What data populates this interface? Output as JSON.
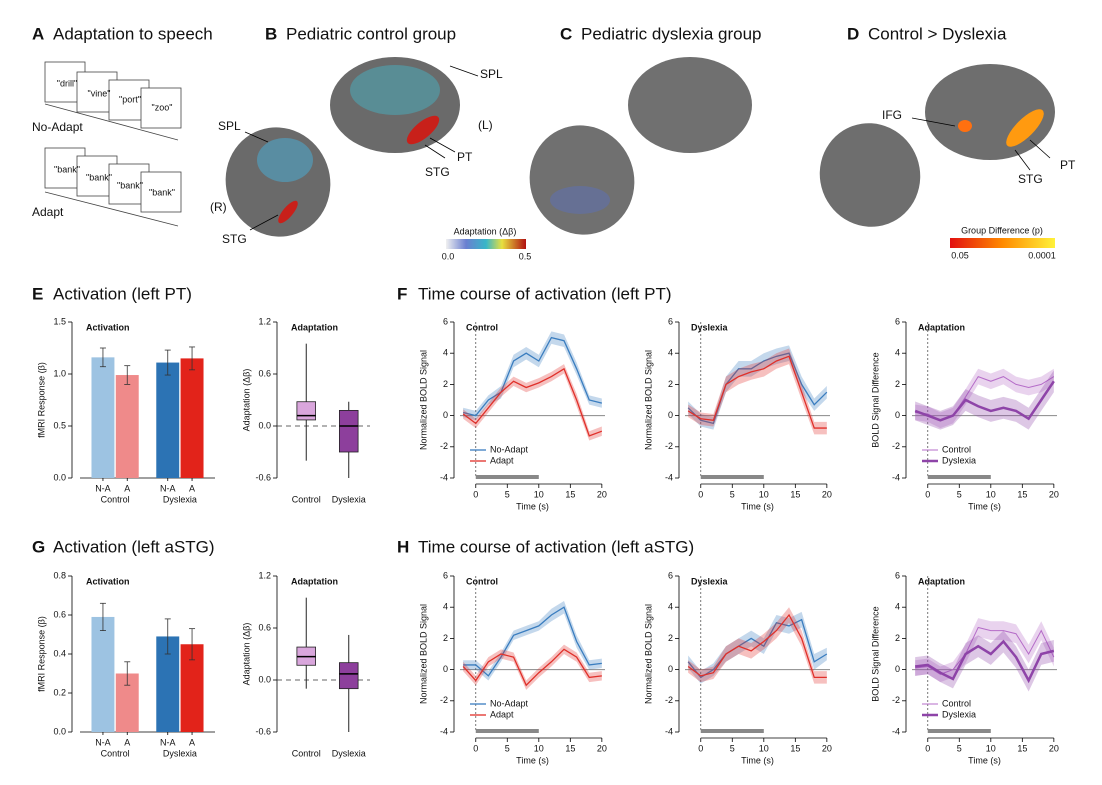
{
  "panels": [
    {
      "letter": "A",
      "title": "Adaptation to speech"
    },
    {
      "letter": "B",
      "title": "Pediatric control group"
    },
    {
      "letter": "C",
      "title": "Pediatric dyslexia group"
    },
    {
      "letter": "D",
      "title": "Control > Dyslexia"
    },
    {
      "letter": "E",
      "title": "Activation (left PT)"
    },
    {
      "letter": "F",
      "title": "Time course of activation (left PT)"
    },
    {
      "letter": "G",
      "title": "Activation (left aSTG)"
    },
    {
      "letter": "H",
      "title": "Time course of activation (left aSTG)"
    }
  ],
  "stimuli": {
    "no_adapt": {
      "label": "No-Adapt",
      "words": [
        "\"drill\"",
        "\"vine\"",
        "\"port\"",
        "\"zoo\""
      ]
    },
    "adapt": {
      "label": "Adapt",
      "words": [
        "\"bank\"",
        "\"bank\"",
        "\"bank\"",
        "\"bank\""
      ]
    }
  },
  "brain_labels": {
    "control": [
      "SPL",
      "SPL",
      "(L)",
      "PT",
      "STG",
      "(R)",
      "STG"
    ],
    "difference": [
      "IFG",
      "PT",
      "STG"
    ]
  },
  "colorbars": [
    {
      "title": "Adaptation (Δβ)",
      "min_label": "0.0",
      "max_label": "0.5"
    },
    {
      "title": "Group Difference (p)",
      "min_label": "0.05",
      "max_label": "0.0001"
    }
  ],
  "chart_data": [
    {
      "type": "bar",
      "title": "Activation",
      "ylabel": "fMRI Response (β)",
      "categories": [
        "N-A",
        "A",
        "N-A",
        "A"
      ],
      "groups": [
        "Control",
        "Dyslexia"
      ],
      "colors": [
        "#9dc3e2",
        "#ef8a8a",
        "#2c73b4",
        "#e2231a"
      ],
      "values": [
        1.16,
        0.99,
        1.11,
        1.15
      ],
      "errors": [
        0.09,
        0.09,
        0.12,
        0.11
      ],
      "ylim": [
        0,
        1.5
      ],
      "yticks": [
        {
          "value": 0,
          "label": "0.0"
        },
        {
          "value": 0.5,
          "label": "0.5"
        },
        {
          "value": 1,
          "label": "1.0"
        },
        {
          "value": 1.5,
          "label": "1.5"
        }
      ]
    },
    {
      "type": "box",
      "title": "Adaptation",
      "ylabel": "Adaptation (Δβ)",
      "categories": [
        "Control",
        "Dyslexia"
      ],
      "boxes": [
        {
          "low": -0.4,
          "q1": 0.07,
          "median": 0.12,
          "q3": 0.28,
          "high": 0.95,
          "color": "#d9a6dc"
        },
        {
          "low": -0.6,
          "q1": -0.3,
          "median": 0.0,
          "q3": 0.18,
          "high": 0.28,
          "color": "#8d3f9c"
        }
      ],
      "reference_line": 0,
      "ylim": [
        -0.6,
        1.2
      ],
      "yticks": [
        -0.6,
        {
          "value": 0,
          "label": "0.0"
        },
        0.6,
        1.2
      ]
    },
    {
      "type": "line",
      "title": "Control",
      "xlabel": "Time (s)",
      "ylabel": "Normalized BOLD Signal",
      "legend": "lower left",
      "x": [
        -2,
        0,
        2,
        4,
        6,
        8,
        10,
        12,
        14,
        16,
        18,
        20
      ],
      "stimulus": [
        0,
        10
      ],
      "reference_line": 0,
      "series": [
        {
          "name": "No-Adapt",
          "color": "#3a7dbf",
          "values": [
            0.2,
            0,
            1,
            1.5,
            3.5,
            4,
            3.5,
            5,
            4.8,
            3,
            1,
            0.8
          ],
          "error": [
            0.3,
            0.3,
            0.3,
            0.4,
            0.4,
            0.4,
            0.4,
            0.4,
            0.4,
            0.4,
            0.3,
            0.3
          ]
        },
        {
          "name": "Adapt",
          "color": "#e0302a",
          "values": [
            0.1,
            -0.5,
            0.5,
            1.5,
            2.2,
            1.8,
            2.1,
            2.5,
            3,
            1,
            -1.3,
            -1
          ],
          "error": [
            0.3,
            0.3,
            0.3,
            0.3,
            0.3,
            0.3,
            0.3,
            0.3,
            0.3,
            0.4,
            0.3,
            0.3
          ]
        }
      ],
      "xlim": [
        -2.5,
        20.5
      ],
      "xticks": [
        0,
        5,
        10,
        15,
        20
      ],
      "ylim": [
        -4,
        6
      ],
      "yticks": [
        -4,
        -2,
        0,
        2,
        4,
        6
      ]
    },
    {
      "type": "line",
      "title": "Dyslexia",
      "xlabel": "Time (s)",
      "ylabel": "Normalized BOLD Signal",
      "x": [
        -2,
        0,
        2,
        4,
        6,
        8,
        10,
        12,
        14,
        16,
        18,
        20
      ],
      "stimulus": [
        0,
        10
      ],
      "reference_line": 0,
      "series": [
        {
          "color": "#3a7dbf",
          "values": [
            0.5,
            -0.3,
            -0.5,
            2,
            3,
            3,
            3.5,
            3.8,
            4,
            2,
            0.7,
            1.5
          ],
          "error": [
            0.4,
            0.4,
            0.4,
            0.5,
            0.5,
            0.5,
            0.5,
            0.5,
            0.5,
            0.5,
            0.4,
            0.4
          ]
        },
        {
          "color": "#e0302a",
          "values": [
            0.3,
            -0.2,
            -0.3,
            2,
            2.5,
            2.8,
            3,
            3.5,
            3.8,
            1.5,
            -0.8,
            -0.8
          ],
          "error": [
            0.4,
            0.4,
            0.4,
            0.5,
            0.5,
            0.5,
            0.5,
            0.5,
            0.5,
            0.5,
            0.4,
            0.4
          ]
        }
      ],
      "xlim": [
        -2.5,
        20.5
      ],
      "xticks": [
        0,
        5,
        10,
        15,
        20
      ],
      "ylim": [
        -4,
        6
      ],
      "yticks": [
        -4,
        -2,
        0,
        2,
        4,
        6
      ]
    },
    {
      "type": "line",
      "title": "Adaptation",
      "xlabel": "Time (s)",
      "ylabel": "BOLD Signal Difference",
      "legend": "lower left",
      "x": [
        -2,
        0,
        2,
        4,
        6,
        8,
        10,
        12,
        14,
        16,
        18,
        20
      ],
      "stimulus": [
        0,
        10
      ],
      "reference_line": 0,
      "series": [
        {
          "name": "Control",
          "color": "#b56cc8",
          "width": 1,
          "values": [
            0.2,
            0.1,
            -0.3,
            0,
            1.2,
            2.5,
            2.2,
            2.5,
            2,
            1.8,
            2,
            2.5
          ],
          "error": [
            0.5,
            0.5,
            0.5,
            0.5,
            0.5,
            0.5,
            0.5,
            0.5,
            0.5,
            0.5,
            0.5,
            0.5
          ]
        },
        {
          "name": "Dyslexia",
          "color": "#8e44a8",
          "width": 2.5,
          "values": [
            0.3,
            0,
            -0.3,
            0,
            1,
            0.6,
            0.3,
            0.5,
            0.3,
            -0.2,
            1,
            2.2
          ],
          "error": [
            0.6,
            0.6,
            0.6,
            0.6,
            0.7,
            0.7,
            0.7,
            0.7,
            0.7,
            0.7,
            0.7,
            0.7
          ]
        }
      ],
      "xlim": [
        -2.5,
        20.5
      ],
      "xticks": [
        0,
        5,
        10,
        15,
        20
      ],
      "ylim": [
        -4,
        6
      ],
      "yticks": [
        -4,
        -2,
        0,
        2,
        4,
        6
      ]
    },
    {
      "type": "bar",
      "title": "Activation",
      "ylabel": "fMRI Response (β)",
      "categories": [
        "N-A",
        "A",
        "N-A",
        "A"
      ],
      "groups": [
        "Control",
        "Dyslexia"
      ],
      "colors": [
        "#9dc3e2",
        "#ef8a8a",
        "#2c73b4",
        "#e2231a"
      ],
      "values": [
        0.59,
        0.3,
        0.49,
        0.45
      ],
      "errors": [
        0.07,
        0.06,
        0.09,
        0.08
      ],
      "ylim": [
        0,
        0.8
      ],
      "yticks": [
        {
          "value": 0,
          "label": "0.0"
        },
        0.2,
        0.4,
        0.6,
        0.8
      ]
    },
    {
      "type": "box",
      "title": "Adaptation",
      "ylabel": "Adaptation (Δβ)",
      "categories": [
        "Control",
        "Dyslexia"
      ],
      "boxes": [
        {
          "low": -0.1,
          "q1": 0.17,
          "median": 0.27,
          "q3": 0.38,
          "high": 0.95,
          "color": "#d9a6dc"
        },
        {
          "low": -0.6,
          "q1": -0.1,
          "median": 0.07,
          "q3": 0.2,
          "high": 0.52,
          "color": "#8d3f9c"
        }
      ],
      "reference_line": 0,
      "ylim": [
        -0.6,
        1.2
      ],
      "yticks": [
        -0.6,
        {
          "value": 0,
          "label": "0.0"
        },
        0.6,
        1.2
      ]
    },
    {
      "type": "line",
      "title": "Control",
      "xlabel": "Time (s)",
      "ylabel": "Normalized BOLD Signal",
      "legend": "lower left",
      "x": [
        -2,
        0,
        2,
        4,
        6,
        8,
        10,
        12,
        14,
        16,
        18,
        20
      ],
      "stimulus": [
        0,
        10
      ],
      "reference_line": 0,
      "series": [
        {
          "name": "No-Adapt",
          "color": "#3a7dbf",
          "values": [
            0.3,
            0.3,
            -0.4,
            0.8,
            2.2,
            2.5,
            2.8,
            3.5,
            4,
            1.8,
            0.3,
            0.4
          ],
          "error": [
            0.3,
            0.3,
            0.3,
            0.3,
            0.3,
            0.3,
            0.3,
            0.4,
            0.4,
            0.4,
            0.3,
            0.3
          ]
        },
        {
          "name": "Adapt",
          "color": "#e0302a",
          "values": [
            0.2,
            -0.7,
            0.5,
            1,
            0.8,
            -1,
            -0.2,
            0.5,
            1.3,
            0.8,
            -0.5,
            -0.4
          ],
          "error": [
            0.3,
            0.3,
            0.3,
            0.3,
            0.3,
            0.3,
            0.3,
            0.3,
            0.3,
            0.3,
            0.3,
            0.3
          ]
        }
      ],
      "xlim": [
        -2.5,
        20.5
      ],
      "xticks": [
        0,
        5,
        10,
        15,
        20
      ],
      "ylim": [
        -4,
        6
      ],
      "yticks": [
        -4,
        -2,
        0,
        2,
        4,
        6
      ]
    },
    {
      "type": "line",
      "title": "Dyslexia",
      "xlabel": "Time (s)",
      "ylabel": "Normalized BOLD Signal",
      "x": [
        -2,
        0,
        2,
        4,
        6,
        8,
        10,
        12,
        14,
        16,
        18,
        20
      ],
      "stimulus": [
        0,
        10
      ],
      "reference_line": 0,
      "series": [
        {
          "color": "#3a7dbf",
          "values": [
            0.5,
            -0.5,
            0,
            1,
            1.5,
            2,
            1.5,
            3,
            2.8,
            3.2,
            0.5,
            1
          ],
          "error": [
            0.4,
            0.4,
            0.4,
            0.5,
            0.5,
            0.5,
            0.5,
            0.5,
            0.5,
            0.5,
            0.5,
            0.4
          ]
        },
        {
          "color": "#e0302a",
          "values": [
            0.2,
            -0.4,
            -0.2,
            1,
            1.5,
            1.2,
            1.8,
            2.5,
            3.5,
            2,
            -0.5,
            -0.5
          ],
          "error": [
            0.4,
            0.4,
            0.4,
            0.5,
            0.5,
            0.5,
            0.5,
            0.5,
            0.5,
            0.5,
            0.4,
            0.4
          ]
        }
      ],
      "xlim": [
        -2.5,
        20.5
      ],
      "xticks": [
        0,
        5,
        10,
        15,
        20
      ],
      "ylim": [
        -4,
        6
      ],
      "yticks": [
        -4,
        -2,
        0,
        2,
        4,
        6
      ]
    },
    {
      "type": "line",
      "title": "Adaptation",
      "xlabel": "Time (s)",
      "ylabel": "BOLD Signal Difference",
      "legend": "lower left",
      "x": [
        -2,
        0,
        2,
        4,
        6,
        8,
        10,
        12,
        14,
        16,
        18,
        20
      ],
      "stimulus": [
        0,
        10
      ],
      "reference_line": 0,
      "series": [
        {
          "name": "Control",
          "color": "#b56cc8",
          "width": 1,
          "values": [
            0.1,
            0.2,
            -0.3,
            0,
            1,
            2.7,
            2.5,
            2.5,
            2.3,
            1,
            2.5,
            0.8
          ],
          "error": [
            0.5,
            0.5,
            0.5,
            0.5,
            0.6,
            0.6,
            0.6,
            0.6,
            0.6,
            0.6,
            0.6,
            0.6
          ]
        },
        {
          "name": "Dyslexia",
          "color": "#8e44a8",
          "width": 2.5,
          "values": [
            0.2,
            0.3,
            -0.2,
            -0.6,
            1,
            1.5,
            1,
            1.8,
            0.8,
            -0.7,
            1,
            1.2
          ],
          "error": [
            0.6,
            0.6,
            0.6,
            0.6,
            0.7,
            0.7,
            0.7,
            0.7,
            0.7,
            0.7,
            0.7,
            0.7
          ]
        }
      ],
      "xlim": [
        -2.5,
        20.5
      ],
      "xticks": [
        0,
        5,
        10,
        15,
        20
      ],
      "ylim": [
        -4,
        6
      ],
      "yticks": [
        -4,
        -2,
        0,
        2,
        4,
        6
      ]
    }
  ]
}
